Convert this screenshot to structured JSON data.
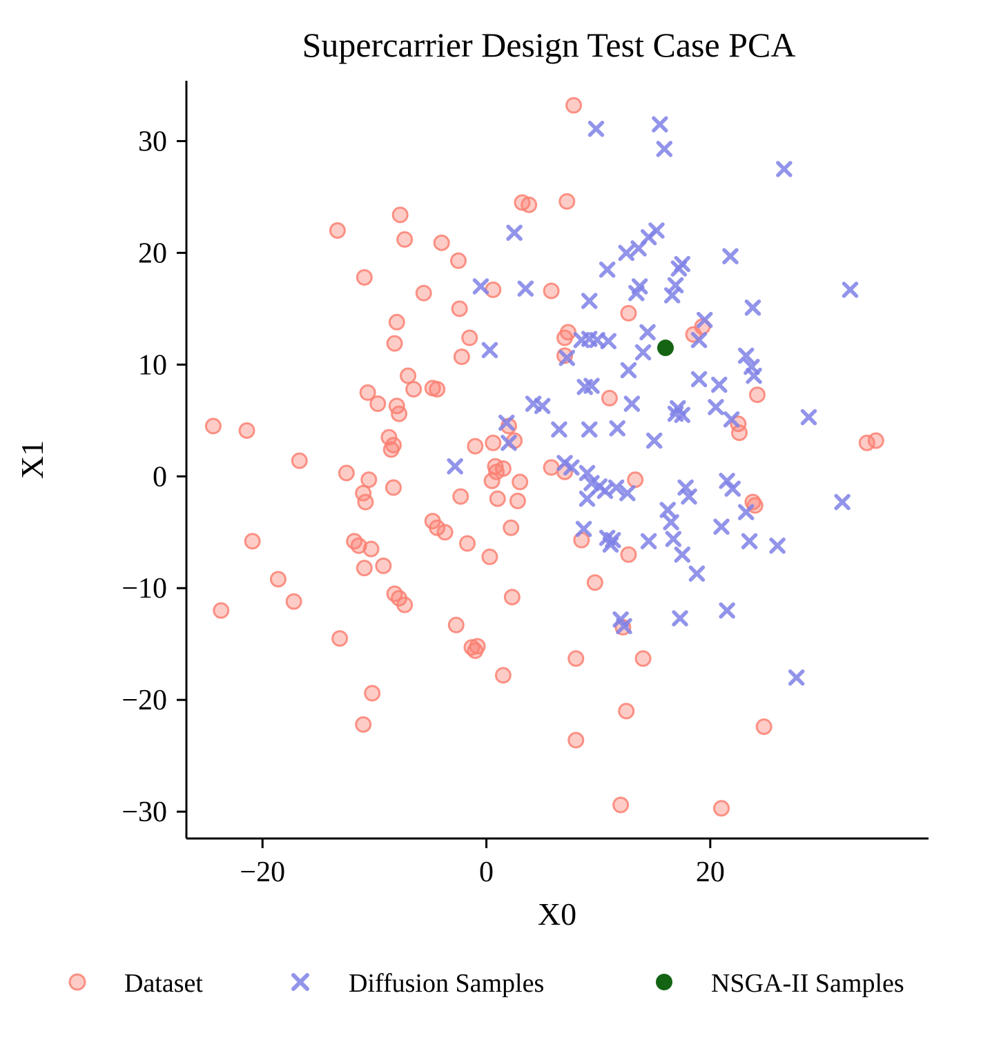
{
  "chart_data": {
    "type": "scatter",
    "title": "Supercarrier Design Test Case PCA",
    "xlabel": "X0",
    "ylabel": "X1",
    "xlim": [
      -26.8,
      39.5
    ],
    "ylim": [
      -32.4,
      35.4
    ],
    "grid": false,
    "legend_position": "bottom-horizontal",
    "xticks": {
      "values": [
        -20,
        0,
        20
      ],
      "labels": [
        "−20",
        "0",
        "20"
      ]
    },
    "yticks": {
      "values": [
        -30,
        -20,
        -10,
        0,
        10,
        20,
        30
      ],
      "labels": [
        "−30",
        "−20",
        "−10",
        "0",
        "10",
        "20",
        "30"
      ]
    },
    "series": [
      {
        "name": "Dataset",
        "marker": "circle",
        "color": "#FA8072",
        "fill_opacity": 0.4,
        "edge_opacity": 0.85,
        "points": [
          [
            -24.4,
            4.5
          ],
          [
            -21.4,
            4.1
          ],
          [
            -23.7,
            -12.0
          ],
          [
            -20.9,
            -5.8
          ],
          [
            -18.6,
            -9.2
          ],
          [
            -17.2,
            -11.2
          ],
          [
            -16.7,
            1.4
          ],
          [
            -13.3,
            22.0
          ],
          [
            -13.1,
            -14.5
          ],
          [
            -12.5,
            0.3
          ],
          [
            -11.8,
            -5.8
          ],
          [
            -11.4,
            -6.2
          ],
          [
            -11.0,
            -22.2
          ],
          [
            -11.0,
            -1.5
          ],
          [
            -10.9,
            17.8
          ],
          [
            -10.9,
            -8.2
          ],
          [
            -10.8,
            -2.3
          ],
          [
            -10.6,
            7.5
          ],
          [
            -10.5,
            -0.3
          ],
          [
            -10.3,
            -6.5
          ],
          [
            -10.2,
            -19.4
          ],
          [
            -9.7,
            6.5
          ],
          [
            -9.2,
            -8.0
          ],
          [
            -8.7,
            3.5
          ],
          [
            -8.5,
            2.4
          ],
          [
            -8.3,
            2.8
          ],
          [
            -8.3,
            -1.0
          ],
          [
            -8.2,
            11.9
          ],
          [
            -8.2,
            -10.5
          ],
          [
            -8.0,
            13.8
          ],
          [
            -8.0,
            6.3
          ],
          [
            -7.8,
            5.6
          ],
          [
            -7.8,
            -10.9
          ],
          [
            -7.7,
            23.4
          ],
          [
            -7.3,
            21.2
          ],
          [
            -7.3,
            -11.5
          ],
          [
            -7.0,
            9.0
          ],
          [
            -6.5,
            7.8
          ],
          [
            -5.6,
            16.4
          ],
          [
            -4.8,
            7.9
          ],
          [
            -4.8,
            -4.0
          ],
          [
            -4.4,
            7.8
          ],
          [
            -4.4,
            -4.6
          ],
          [
            -4.0,
            20.9
          ],
          [
            -3.7,
            -5.0
          ],
          [
            -2.7,
            -13.3
          ],
          [
            -2.5,
            19.3
          ],
          [
            -2.4,
            15.0
          ],
          [
            -2.3,
            -1.8
          ],
          [
            -2.2,
            10.7
          ],
          [
            -1.7,
            -6.0
          ],
          [
            -1.5,
            12.4
          ],
          [
            -1.3,
            -15.3
          ],
          [
            -1.0,
            2.7
          ],
          [
            -1.0,
            -15.6
          ],
          [
            -0.8,
            -15.2
          ],
          [
            0.3,
            -7.2
          ],
          [
            0.5,
            -0.4
          ],
          [
            0.6,
            16.7
          ],
          [
            0.6,
            3.0
          ],
          [
            0.8,
            0.9
          ],
          [
            0.9,
            0.4
          ],
          [
            1.0,
            -2.0
          ],
          [
            1.5,
            0.7
          ],
          [
            1.5,
            -17.8
          ],
          [
            2.0,
            4.5
          ],
          [
            2.2,
            -4.6
          ],
          [
            2.3,
            -10.8
          ],
          [
            2.5,
            3.2
          ],
          [
            2.8,
            -2.2
          ],
          [
            3.0,
            -0.5
          ],
          [
            3.2,
            24.5
          ],
          [
            3.8,
            24.3
          ],
          [
            5.8,
            16.6
          ],
          [
            5.8,
            0.8
          ],
          [
            7.0,
            12.4
          ],
          [
            7.0,
            10.8
          ],
          [
            7.0,
            0.4
          ],
          [
            7.2,
            24.6
          ],
          [
            7.3,
            12.9
          ],
          [
            7.8,
            33.2
          ],
          [
            8.0,
            -16.3
          ],
          [
            8.0,
            -23.6
          ],
          [
            8.5,
            -5.7
          ],
          [
            9.7,
            -9.5
          ],
          [
            11.0,
            7.0
          ],
          [
            12.0,
            -29.4
          ],
          [
            12.2,
            -13.5
          ],
          [
            12.5,
            -21.0
          ],
          [
            12.7,
            14.6
          ],
          [
            12.7,
            -7.0
          ],
          [
            13.3,
            -0.3
          ],
          [
            14.0,
            -16.3
          ],
          [
            18.5,
            12.7
          ],
          [
            19.3,
            13.4
          ],
          [
            21.0,
            -29.7
          ],
          [
            22.5,
            4.7
          ],
          [
            22.6,
            3.9
          ],
          [
            23.8,
            -2.3
          ],
          [
            24.0,
            -2.6
          ],
          [
            24.2,
            7.3
          ],
          [
            24.8,
            -22.4
          ],
          [
            34.0,
            3.0
          ],
          [
            34.8,
            3.2
          ]
        ]
      },
      {
        "name": "Diffusion Samples",
        "marker": "x",
        "color": "#7F81E6",
        "fill_opacity": 0.85,
        "edge_opacity": 0.85,
        "points": [
          [
            9.8,
            31.1
          ],
          [
            15.5,
            31.5
          ],
          [
            15.9,
            29.3
          ],
          [
            26.6,
            27.5
          ],
          [
            2.5,
            21.8
          ],
          [
            14.5,
            21.4
          ],
          [
            15.2,
            22.0
          ],
          [
            12.5,
            20.0
          ],
          [
            13.6,
            20.4
          ],
          [
            17.2,
            18.6
          ],
          [
            17.5,
            19.0
          ],
          [
            21.8,
            19.7
          ],
          [
            10.8,
            18.5
          ],
          [
            13.4,
            16.4
          ],
          [
            13.7,
            17.0
          ],
          [
            16.6,
            16.2
          ],
          [
            16.9,
            17.1
          ],
          [
            32.5,
            16.7
          ],
          [
            -0.5,
            17.0
          ],
          [
            3.5,
            16.8
          ],
          [
            9.2,
            15.7
          ],
          [
            23.8,
            15.1
          ],
          [
            19.5,
            14.0
          ],
          [
            14.4,
            12.9
          ],
          [
            0.3,
            11.3
          ],
          [
            7.2,
            10.6
          ],
          [
            8.5,
            12.2
          ],
          [
            9.2,
            12.3
          ],
          [
            9.9,
            12.2
          ],
          [
            10.9,
            12.1
          ],
          [
            14.0,
            11.1
          ],
          [
            19.0,
            12.2
          ],
          [
            23.2,
            10.8
          ],
          [
            12.7,
            9.5
          ],
          [
            23.7,
            9.8
          ],
          [
            23.9,
            9.0
          ],
          [
            8.8,
            8.0
          ],
          [
            9.4,
            8.1
          ],
          [
            19.0,
            8.7
          ],
          [
            20.8,
            8.2
          ],
          [
            4.2,
            6.5
          ],
          [
            5.0,
            6.3
          ],
          [
            13.0,
            6.5
          ],
          [
            17.1,
            6.1
          ],
          [
            20.5,
            6.2
          ],
          [
            28.8,
            5.3
          ],
          [
            1.8,
            4.8
          ],
          [
            6.5,
            4.2
          ],
          [
            9.2,
            4.2
          ],
          [
            11.7,
            4.3
          ],
          [
            16.9,
            5.6
          ],
          [
            17.5,
            5.5
          ],
          [
            21.9,
            5.1
          ],
          [
            15.0,
            3.2
          ],
          [
            -2.8,
            0.9
          ],
          [
            2.0,
            3.0
          ],
          [
            7.0,
            1.2
          ],
          [
            7.6,
            0.8
          ],
          [
            9.0,
            0.3
          ],
          [
            9.4,
            -0.6
          ],
          [
            10.1,
            -0.9
          ],
          [
            10.6,
            -1.3
          ],
          [
            9.0,
            -2.0
          ],
          [
            11.6,
            -1.0
          ],
          [
            12.6,
            -1.5
          ],
          [
            17.8,
            -1.0
          ],
          [
            18.1,
            -1.8
          ],
          [
            21.5,
            -0.4
          ],
          [
            22.0,
            -1.1
          ],
          [
            16.2,
            -3.0
          ],
          [
            23.2,
            -3.2
          ],
          [
            31.8,
            -2.3
          ],
          [
            8.7,
            -4.7
          ],
          [
            10.8,
            -5.5
          ],
          [
            11.1,
            -6.1
          ],
          [
            11.3,
            -5.7
          ],
          [
            14.5,
            -5.8
          ],
          [
            16.5,
            -4.1
          ],
          [
            16.7,
            -5.6
          ],
          [
            17.5,
            -7.0
          ],
          [
            18.8,
            -8.7
          ],
          [
            21.0,
            -4.5
          ],
          [
            23.5,
            -5.8
          ],
          [
            26.0,
            -6.2
          ],
          [
            12.0,
            -12.8
          ],
          [
            12.3,
            -13.4
          ],
          [
            17.3,
            -12.7
          ],
          [
            21.5,
            -12.0
          ],
          [
            27.7,
            -18.0
          ]
        ]
      },
      {
        "name": "NSGA-II Samples",
        "marker": "circle-solid",
        "color": "#146414",
        "fill_opacity": 1.0,
        "edge_opacity": 1.0,
        "points": [
          [
            16.0,
            11.5
          ]
        ]
      }
    ]
  }
}
